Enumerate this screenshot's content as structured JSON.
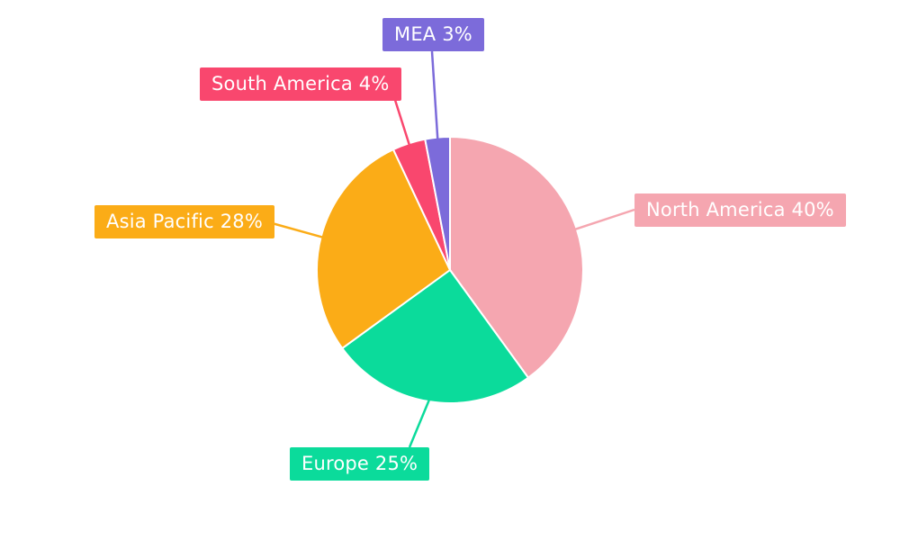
{
  "chart_data": {
    "type": "pie",
    "title": "",
    "labels": [
      "North America",
      "Europe",
      "Asia Pacific",
      "South America",
      "MEA"
    ],
    "values": [
      40,
      25,
      28,
      4,
      3
    ],
    "unit": "%",
    "colors": [
      "#F5A6B0",
      "#0BDB9B",
      "#FBAC17",
      "#F9476E",
      "#7C6BDA"
    ],
    "callout_texts": [
      "North America 40%",
      "Europe 25%",
      "Asia Pacific 28%",
      "South America 4%",
      "MEA 3%"
    ],
    "start_angle_deg": 0,
    "direction": "clockwise",
    "legend_position": "outside-callouts",
    "background_color": "#FFFFFF",
    "slice_border_color": "#FFFFFF"
  }
}
